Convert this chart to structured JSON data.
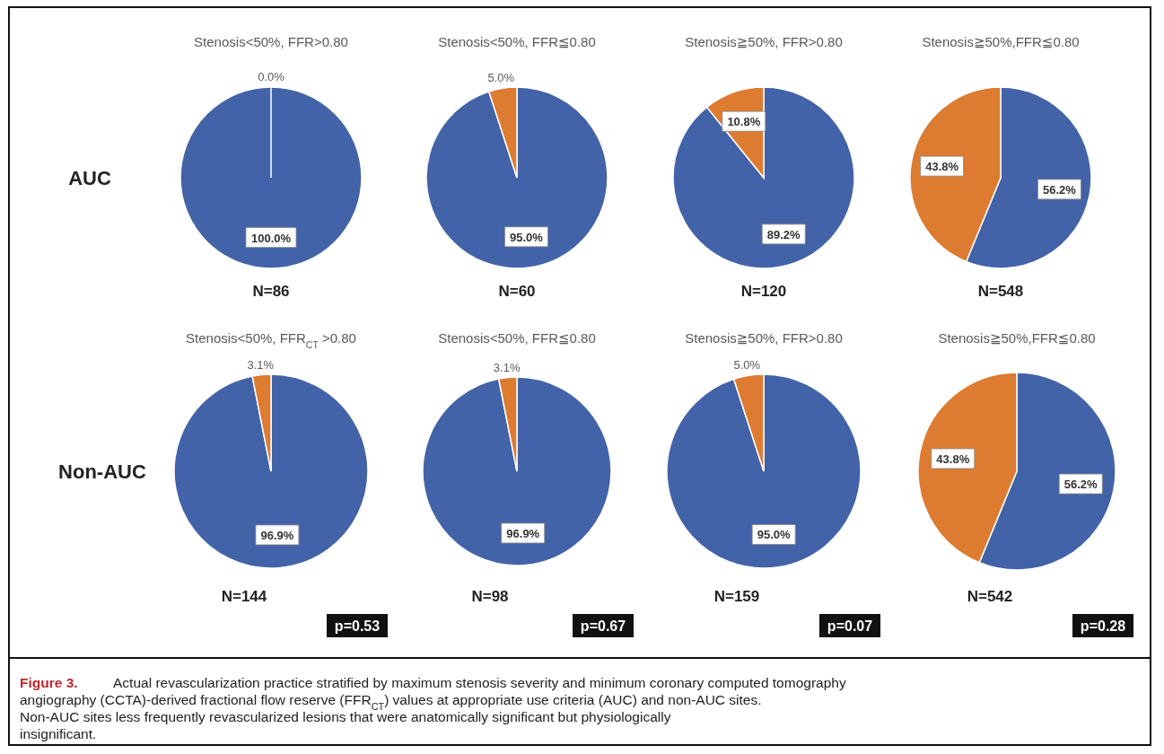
{
  "chart_data": [
    {
      "type": "pie",
      "title": "Stenosis<50%, FFR>0.80",
      "ylabel": "AUC",
      "categories": [
        null,
        null
      ],
      "values": [
        100,
        0
      ],
      "colors": [
        "#4363a8",
        "#dd7b30"
      ],
      "value_labels": [
        "100.0%",
        "0.0%"
      ],
      "annotations": [
        "N=86"
      ]
    },
    {
      "type": "pie",
      "title": "Stenosis<50%, FFR≦0.80",
      "categories": [
        null,
        null
      ],
      "values": [
        95,
        5
      ],
      "colors": [
        "#4363a8",
        "#dd7b30"
      ],
      "value_labels": [
        "95.0%",
        "5.0%"
      ],
      "annotations": [
        "N=60"
      ]
    },
    {
      "type": "pie",
      "title": "Stenosis≧50%, FFR>0.80",
      "categories": [
        null,
        null
      ],
      "values": [
        89.2,
        10.8
      ],
      "colors": [
        "#4363a8",
        "#dd7b30"
      ],
      "value_labels": [
        "89.2%",
        "10.8%"
      ],
      "annotations": [
        "N=120"
      ]
    },
    {
      "type": "pie",
      "title": "Stenosis≧50%,FFR≦0.80",
      "categories": [
        null,
        null
      ],
      "values": [
        56.2,
        43.8
      ],
      "colors": [
        "#4363a8",
        "#dd7b30"
      ],
      "value_labels": [
        "56.2%",
        "43.8%"
      ],
      "annotations": [
        "N=548"
      ]
    },
    {
      "type": "pie",
      "title": "Stenosis<50%, FFR$_{CT}$ >0.80",
      "ylabel": "Non-AUC",
      "categories": [
        null,
        null
      ],
      "values": [
        96.9,
        3.1
      ],
      "colors": [
        "#4363a8",
        "#dd7b30"
      ],
      "value_labels": [
        "96.9%",
        "3.1%"
      ],
      "annotations": [
        "N=144",
        "p=0.53"
      ]
    },
    {
      "type": "pie",
      "title": "Stenosis<50%, FFR≦0.80",
      "categories": [
        null,
        null
      ],
      "values": [
        96.9,
        3.1
      ],
      "colors": [
        "#4363a8",
        "#dd7b30"
      ],
      "value_labels": [
        "96.9%",
        "3.1%"
      ],
      "annotations": [
        "N=98",
        "p=0.67"
      ]
    },
    {
      "type": "pie",
      "title": "Stenosis≧50%, FFR>0.80",
      "categories": [
        null,
        null
      ],
      "values": [
        95,
        5
      ],
      "colors": [
        "#4363a8",
        "#dd7b30"
      ],
      "value_labels": [
        "95.0%",
        "5.0%"
      ],
      "annotations": [
        "N=159",
        "p=0.07"
      ]
    },
    {
      "type": "pie",
      "title": "Stenosis≧50%,FFR≦0.80",
      "categories": [
        null,
        null
      ],
      "values": [
        56.2,
        43.8
      ],
      "colors": [
        "#4363a8",
        "#dd7b30"
      ],
      "value_labels": [
        "56.2%",
        "43.8%"
      ],
      "annotations": [
        "N=542",
        "p=0.28",
        "Figure 3.    Actual revascularization practice stratified by maximum stenosis severity and minimum coronary computed tomography angiography (CCTA)-derived fractional flow reserve (FFR$_{CT}$) values at appropriate use criteria (AUC) and non-AUC sites. Non-AUC sites less frequently revascularized lesions that were anatomically significant but physiologically insignificant."
      ]
    }
  ]
}
